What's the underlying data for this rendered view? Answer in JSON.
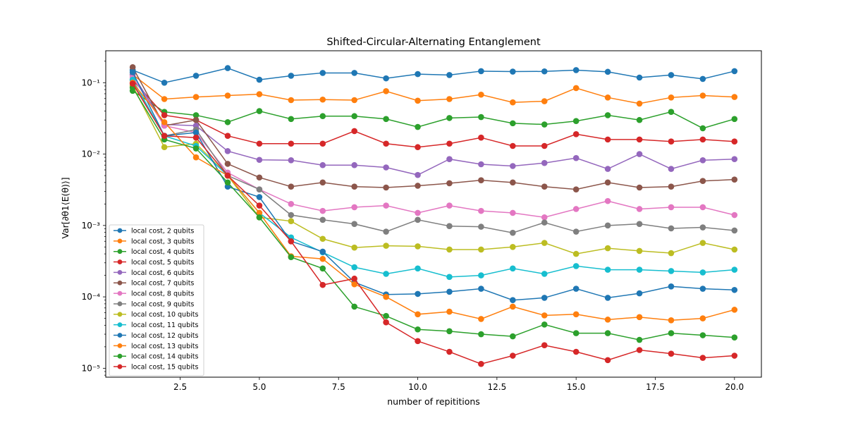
{
  "chart_data": {
    "type": "line",
    "title": "Shifted-Circular-Alternating Entanglement",
    "xlabel": "number of repititions",
    "ylabel": "Var[∂θ1⟨E(θ)⟩]",
    "yscale": "log",
    "xlim": [
      0.15,
      20.85
    ],
    "ylim": [
      7.5e-06,
      0.28
    ],
    "x_ticks": [
      2.5,
      5.0,
      7.5,
      10.0,
      12.5,
      15.0,
      17.5,
      20.0
    ],
    "x_tick_labels": [
      "2.5",
      "5.0",
      "7.5",
      "10.0",
      "12.5",
      "15.0",
      "17.5",
      "20.0"
    ],
    "y_ticks": [
      1e-05,
      0.0001,
      0.001,
      0.01,
      0.1
    ],
    "y_tick_labels": [
      "10⁻⁵",
      "10⁻⁴",
      "10⁻³",
      "10⁻²",
      "10⁻¹"
    ],
    "grid": false,
    "legend_position": "lower-left",
    "x": [
      1,
      2,
      3,
      4,
      5,
      6,
      7,
      8,
      9,
      10,
      11,
      12,
      13,
      14,
      15,
      16,
      17,
      18,
      19,
      20
    ],
    "series": [
      {
        "name": "local cost, 2 qubits",
        "color": "#1f77b4",
        "values": [
          0.15,
          0.1,
          0.125,
          0.16,
          0.11,
          0.125,
          0.137,
          0.137,
          0.115,
          0.132,
          0.128,
          0.145,
          0.143,
          0.144,
          0.15,
          0.142,
          0.118,
          0.128,
          0.113,
          0.145
        ]
      },
      {
        "name": "local cost, 3 qubits",
        "color": "#ff7f0e",
        "values": [
          0.13,
          0.059,
          0.063,
          0.066,
          0.069,
          0.057,
          0.058,
          0.057,
          0.076,
          0.056,
          0.059,
          0.068,
          0.053,
          0.055,
          0.084,
          0.062,
          0.051,
          0.062,
          0.066,
          0.063
        ]
      },
      {
        "name": "local cost, 4 qubits",
        "color": "#2ca02c",
        "values": [
          0.077,
          0.039,
          0.035,
          0.028,
          0.04,
          0.031,
          0.034,
          0.034,
          0.031,
          0.024,
          0.032,
          0.033,
          0.027,
          0.026,
          0.029,
          0.035,
          0.03,
          0.039,
          0.023,
          0.031
        ]
      },
      {
        "name": "local cost, 5 qubits",
        "color": "#d62728",
        "values": [
          0.11,
          0.035,
          0.03,
          0.018,
          0.014,
          0.014,
          0.014,
          0.021,
          0.014,
          0.0125,
          0.014,
          0.017,
          0.013,
          0.013,
          0.019,
          0.016,
          0.016,
          0.015,
          0.016,
          0.015
        ]
      },
      {
        "name": "local cost, 6 qubits",
        "color": "#9467bd",
        "values": [
          0.13,
          0.026,
          0.025,
          0.011,
          0.0083,
          0.0082,
          0.007,
          0.007,
          0.0065,
          0.0051,
          0.0085,
          0.0072,
          0.0068,
          0.0075,
          0.0088,
          0.0062,
          0.01,
          0.0062,
          0.0082,
          0.0085
        ]
      },
      {
        "name": "local cost, 7 qubits",
        "color": "#8c564b",
        "values": [
          0.165,
          0.025,
          0.03,
          0.0073,
          0.0047,
          0.0035,
          0.004,
          0.0035,
          0.0034,
          0.0036,
          0.0039,
          0.0043,
          0.004,
          0.0035,
          0.0032,
          0.004,
          0.0034,
          0.0035,
          0.0042,
          0.0044
        ]
      },
      {
        "name": "local cost, 8 qubits",
        "color": "#e377c2",
        "values": [
          0.12,
          0.025,
          0.02,
          0.0055,
          0.0032,
          0.002,
          0.0016,
          0.0018,
          0.0019,
          0.0015,
          0.0019,
          0.0016,
          0.0015,
          0.0013,
          0.0017,
          0.0022,
          0.0017,
          0.0018,
          0.0018,
          0.0014
        ]
      },
      {
        "name": "local cost, 9 qubits",
        "color": "#7f7f7f",
        "values": [
          0.1,
          0.018,
          0.022,
          0.005,
          0.0032,
          0.0014,
          0.0012,
          0.00105,
          0.00082,
          0.0012,
          0.00098,
          0.00096,
          0.00079,
          0.0011,
          0.00082,
          0.001,
          0.00105,
          0.00091,
          0.00094,
          0.00085
        ]
      },
      {
        "name": "local cost, 10 qubits",
        "color": "#bcbd22",
        "values": [
          0.09,
          0.0125,
          0.014,
          0.005,
          0.0013,
          0.00115,
          0.00065,
          0.00049,
          0.00052,
          0.00051,
          0.00046,
          0.00046,
          0.0005,
          0.00057,
          0.0004,
          0.00048,
          0.00044,
          0.00041,
          0.00057,
          0.00046
        ]
      },
      {
        "name": "local cost, 11 qubits",
        "color": "#17becf",
        "values": [
          0.11,
          0.018,
          0.013,
          0.005,
          0.0015,
          0.00068,
          0.00042,
          0.00026,
          0.00021,
          0.00025,
          0.00019,
          0.0002,
          0.00025,
          0.00021,
          0.00027,
          0.00024,
          0.00024,
          0.00023,
          0.00022,
          0.00024
        ]
      },
      {
        "name": "local cost, 12 qubits",
        "color": "#1f77b4",
        "values": [
          0.14,
          0.018,
          0.02,
          0.0035,
          0.0025,
          0.0006,
          0.00043,
          0.00016,
          0.000108,
          0.00011,
          0.000118,
          0.00013,
          9e-05,
          9.7e-05,
          0.00013,
          9.7e-05,
          0.000112,
          0.00014,
          0.00013,
          0.000125
        ]
      },
      {
        "name": "local cost, 13 qubits",
        "color": "#ff7f0e",
        "values": [
          0.1,
          0.028,
          0.009,
          0.005,
          0.0015,
          0.00037,
          0.00034,
          0.00015,
          0.0001,
          5.7e-05,
          6.2e-05,
          4.9e-05,
          7.3e-05,
          5.5e-05,
          5.7e-05,
          4.8e-05,
          5.2e-05,
          4.7e-05,
          5e-05,
          6.6e-05
        ]
      },
      {
        "name": "local cost, 14 qubits",
        "color": "#2ca02c",
        "values": [
          0.085,
          0.016,
          0.012,
          0.004,
          0.0013,
          0.00036,
          0.00025,
          7.3e-05,
          5.4e-05,
          3.5e-05,
          3.3e-05,
          3e-05,
          2.8e-05,
          4.1e-05,
          3.1e-05,
          3.1e-05,
          2.5e-05,
          3.1e-05,
          2.9e-05,
          2.7e-05
        ]
      },
      {
        "name": "local cost, 15 qubits",
        "color": "#d62728",
        "values": [
          0.097,
          0.018,
          0.017,
          0.005,
          0.0019,
          0.0006,
          0.000147,
          0.00018,
          4.4e-05,
          2.4e-05,
          1.7e-05,
          1.15e-05,
          1.5e-05,
          2.1e-05,
          1.7e-05,
          1.3e-05,
          1.8e-05,
          1.6e-05,
          1.4e-05,
          1.5e-05
        ]
      }
    ]
  }
}
